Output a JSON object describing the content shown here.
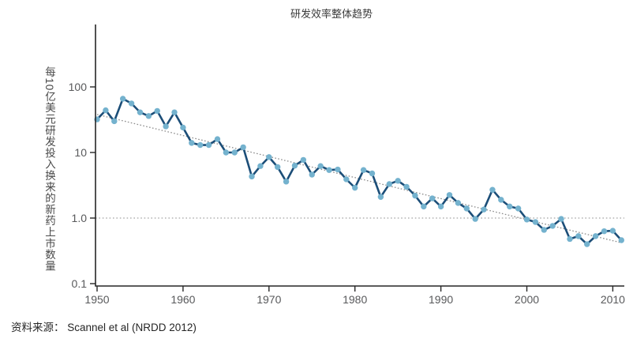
{
  "chart": {
    "title": "研发效率整体趋势",
    "y_axis_label": "每10亿美元研发投入换来的新药上市数量",
    "source_note": "资料来源： Scannel et al (NRDD 2012)"
  },
  "chart_data": {
    "type": "line",
    "title": "研发效率整体趋势",
    "xlabel": "",
    "ylabel": "每10亿美元研发投入换来的新药上市数量",
    "source": "Scannel et al (NRDD 2012)",
    "y_scale": "log10",
    "xlim": [
      1950,
      2011
    ],
    "ylim": [
      0.1,
      100
    ],
    "x_ticks": [
      1950,
      1960,
      1970,
      1980,
      1990,
      2000,
      2010
    ],
    "y_ticks": [
      {
        "value": 100,
        "label": "100"
      },
      {
        "value": 10,
        "label": "10"
      },
      {
        "value": 1,
        "label": "1.0"
      },
      {
        "value": 0.1,
        "label": "0.1"
      }
    ],
    "grid": false,
    "legend": null,
    "x": [
      1950,
      1951,
      1952,
      1953,
      1954,
      1955,
      1956,
      1957,
      1958,
      1959,
      1960,
      1961,
      1962,
      1963,
      1964,
      1965,
      1966,
      1967,
      1968,
      1969,
      1970,
      1971,
      1972,
      1973,
      1974,
      1975,
      1976,
      1977,
      1978,
      1979,
      1980,
      1981,
      1982,
      1983,
      1984,
      1985,
      1986,
      1987,
      1988,
      1989,
      1990,
      1991,
      1992,
      1993,
      1994,
      1995,
      1996,
      1997,
      1998,
      1999,
      2000,
      2001,
      2002,
      2003,
      2004,
      2005,
      2006,
      2007,
      2008,
      2009,
      2010,
      2011
    ],
    "y": [
      32,
      44,
      30,
      66,
      56,
      41,
      36,
      43,
      25,
      41,
      24,
      14,
      13,
      13,
      16,
      10,
      10,
      12,
      4.3,
      6.2,
      8.5,
      6.0,
      3.6,
      6.3,
      7.7,
      4.6,
      6.2,
      5.4,
      5.5,
      3.9,
      2.9,
      5.4,
      4.8,
      2.1,
      3.3,
      3.7,
      3.0,
      2.2,
      1.5,
      2.0,
      1.5,
      2.25,
      1.7,
      1.4,
      0.97,
      1.35,
      2.7,
      1.9,
      1.5,
      1.4,
      0.95,
      0.87,
      0.66,
      0.76,
      0.97,
      0.48,
      0.53,
      0.4,
      0.53,
      0.63,
      0.64,
      0.46
    ],
    "reference_line_y": 1.0,
    "trend_line": {
      "x": [
        1950,
        2011
      ],
      "y": [
        38,
        0.42
      ]
    },
    "colors": {
      "line": "#1c4e78",
      "marker": "#74b2ce",
      "axis": "#262626",
      "tick_label": "#58595b",
      "reference": "#a3a3a3",
      "trend": "#8c8c8c"
    }
  }
}
